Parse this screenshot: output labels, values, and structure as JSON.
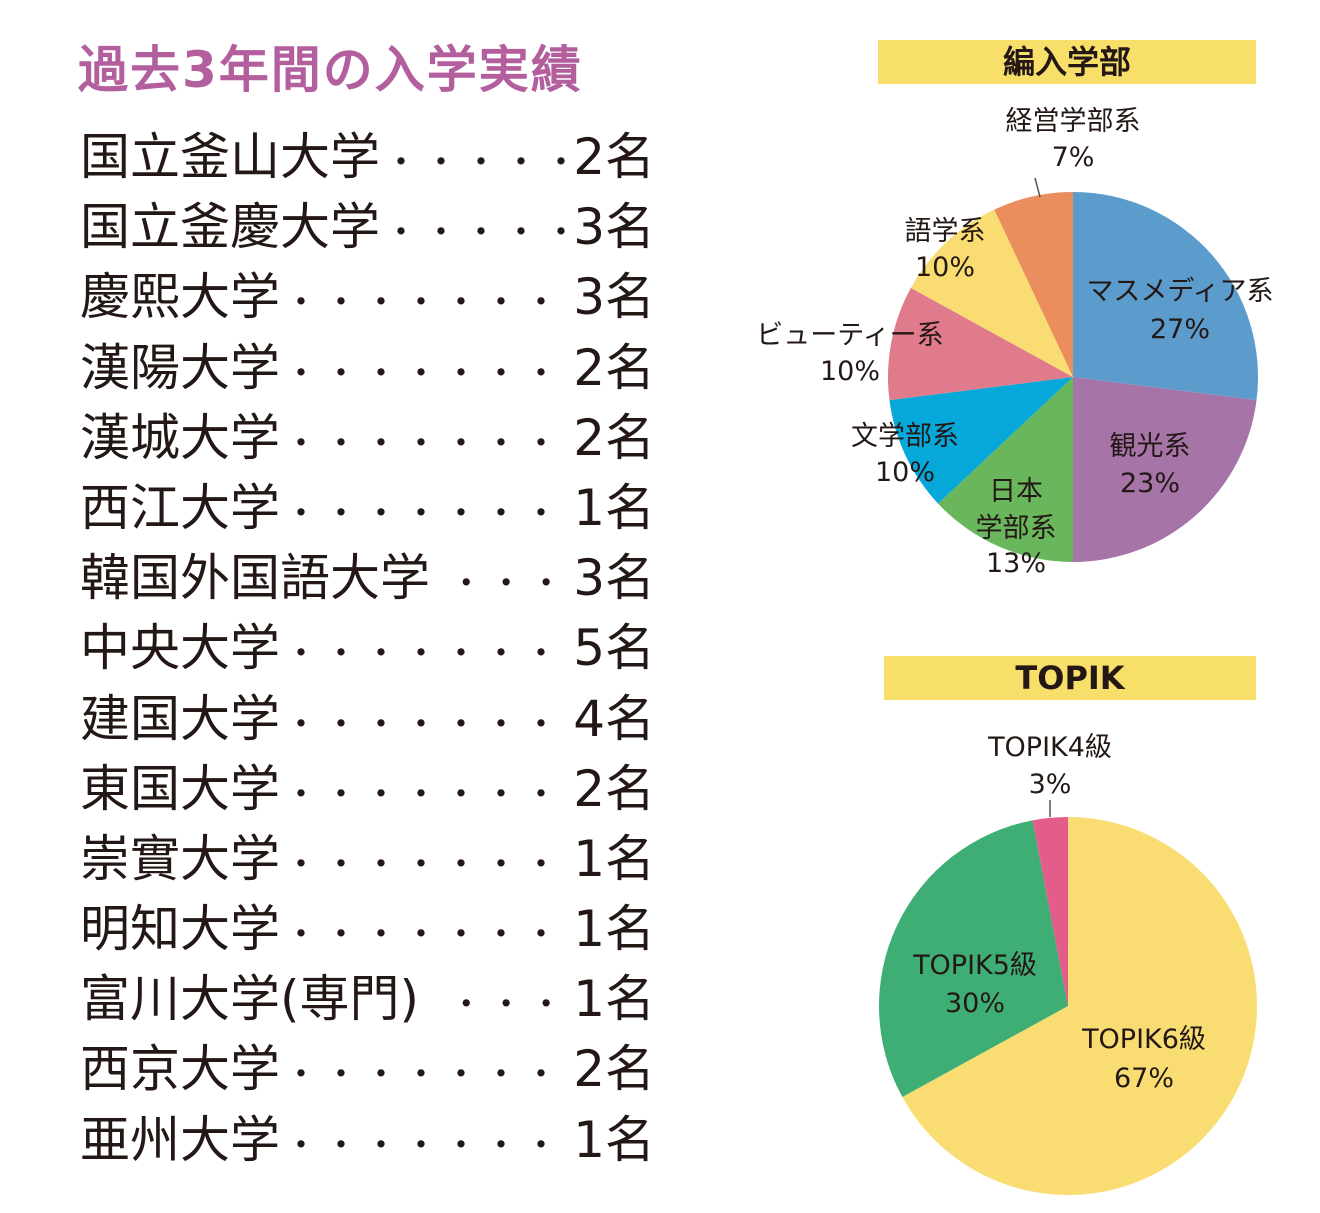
{
  "heading": "過去3年間の入学実績",
  "universities": [
    {
      "name": "国立釜山大学",
      "dots": "・・・・・",
      "count": "2名"
    },
    {
      "name": "国立釜慶大学",
      "dots": "・・・・・",
      "count": "3名"
    },
    {
      "name": "慶熙大学",
      "dots": "・・・・・・・・・・",
      "count": "3名"
    },
    {
      "name": "漢陽大学",
      "dots": "・・・・・・・・・・",
      "count": "2名"
    },
    {
      "name": "漢城大学",
      "dots": "・・・・・・・・・・",
      "count": "2名"
    },
    {
      "name": "西江大学",
      "dots": "・・・・・・・・・・",
      "count": "1名"
    },
    {
      "name": "韓国外国語大学",
      "dots": "・・・",
      "count": "3名"
    },
    {
      "name": "中央大学",
      "dots": "・・・・・・・・・・",
      "count": "5名"
    },
    {
      "name": "建国大学",
      "dots": "・・・・・・・・・・",
      "count": "4名"
    },
    {
      "name": "東国大学",
      "dots": "・・・・・・・・・・",
      "count": "2名"
    },
    {
      "name": "崇實大学",
      "dots": "・・・・・・・・・・",
      "count": "1名"
    },
    {
      "name": "明知大学",
      "dots": "・・・・・・・・・・",
      "count": "1名"
    },
    {
      "name": "富川大学(専門)",
      "dots": "・・・",
      "count": "1名"
    },
    {
      "name": "西京大学",
      "dots": "・・・・・・・・・・",
      "count": "2名"
    },
    {
      "name": "亜州大学",
      "dots": "・・・・・・・・・・",
      "count": "1名"
    }
  ],
  "chart_data": [
    {
      "type": "pie",
      "title": "編入学部",
      "slices": [
        {
          "label": "マスメディア系",
          "value": 27,
          "pct": "27%",
          "color": "#5b9ccc"
        },
        {
          "label": "観光系",
          "value": 23,
          "pct": "23%",
          "color": "#a674a6"
        },
        {
          "label": "日本\n学部系",
          "value": 13,
          "pct": "13%",
          "color": "#69b65c"
        },
        {
          "label": "文学部系",
          "value": 10,
          "pct": "10%",
          "color": "#06a8da"
        },
        {
          "label": "ビューティー系",
          "value": 10,
          "pct": "10%",
          "color": "#e07b8c"
        },
        {
          "label": "語学系",
          "value": 10,
          "pct": "10%",
          "color": "#fadd72"
        },
        {
          "label": "経営学部系",
          "value": 7,
          "pct": "7%",
          "color": "#e98e5c"
        }
      ]
    },
    {
      "type": "pie",
      "title": "TOPIK",
      "slices": [
        {
          "label": "TOPIK6級",
          "value": 67,
          "pct": "67%",
          "color": "#fadd72"
        },
        {
          "label": "TOPIK5級",
          "value": 30,
          "pct": "30%",
          "color": "#3eae74"
        },
        {
          "label": "TOPIK4級",
          "value": 3,
          "pct": "3%",
          "color": "#e35c8a"
        }
      ]
    }
  ]
}
